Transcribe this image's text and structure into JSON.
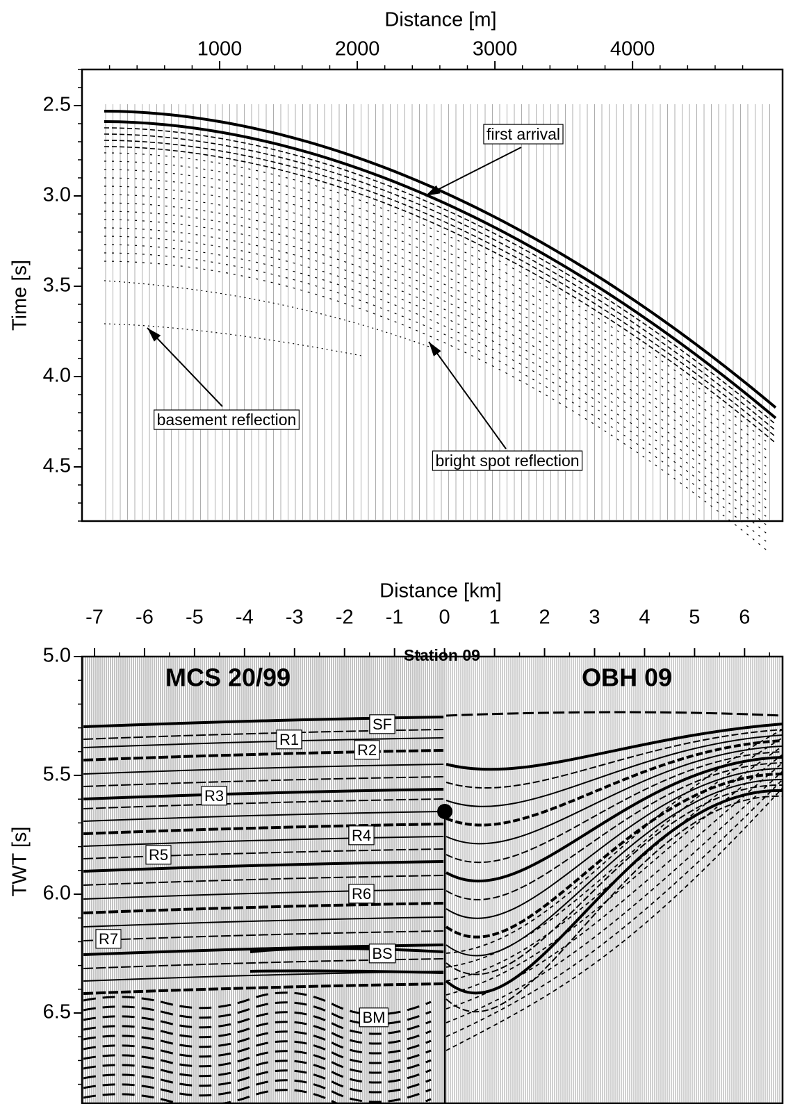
{
  "chart_data": [
    {
      "type": "seismic",
      "xlabel": "Distance [m]",
      "ylabel": "Time [s]",
      "xlim": [
        0,
        5090
      ],
      "ylim": [
        4.8,
        2.3
      ],
      "xticks": [
        1000,
        2000,
        3000,
        4000
      ],
      "yticks": [
        2.5,
        {
          "value": 3,
          "label": "3.0"
        },
        3.5,
        {
          "value": 4,
          "label": "4.0"
        },
        4.5
      ],
      "annotations": [
        "first arrival",
        "basement reflection",
        "bright spot reflection"
      ]
    },
    {
      "type": "seismic",
      "xlabel": "Distance [km]",
      "ylabel": "TWT [s]",
      "xlim": [
        -7.25,
        6.76
      ],
      "ylim": [
        6.88,
        5.0
      ],
      "xticks": [
        -7,
        -6,
        -5,
        -4,
        -3,
        -2,
        -1,
        0,
        1,
        2,
        3,
        4,
        5,
        6
      ],
      "yticks": [
        {
          "value": 5,
          "label": "5.0"
        },
        5.5,
        {
          "value": 6,
          "label": "6.0"
        },
        6.5
      ],
      "labels": [
        "MCS 20/99",
        "Station 09",
        "OBH 09"
      ],
      "horizons": [
        "SF",
        "R1",
        "R2",
        "R3",
        "R4",
        "R5",
        "R6",
        "R7",
        "BS",
        "BM"
      ]
    }
  ]
}
